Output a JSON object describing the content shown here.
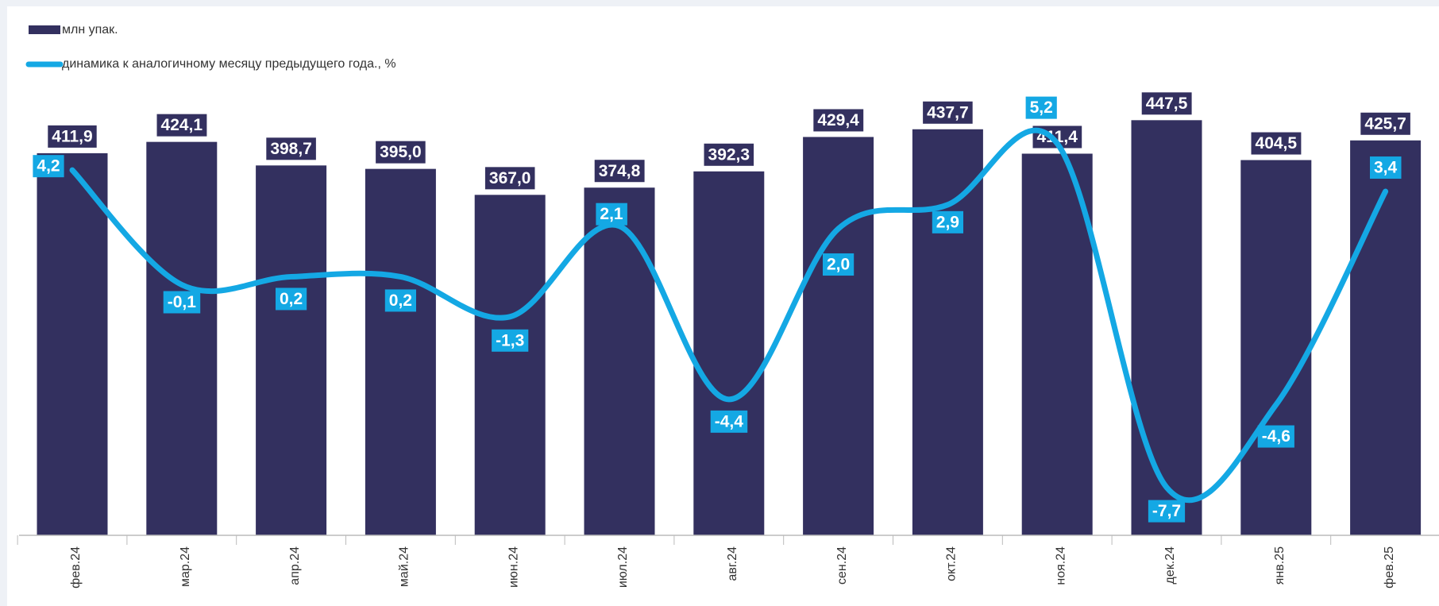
{
  "chart_data": {
    "type": "bar_line",
    "categories": [
      "фев.24",
      "мар.24",
      "апр.24",
      "май.24",
      "июн.24",
      "июл.24",
      "авг.24",
      "сен.24",
      "окт.24",
      "ноя.24",
      "дек.24",
      "янв.25",
      "фев.25"
    ],
    "series": [
      {
        "name": "млн упак.",
        "color": "#33305f",
        "type": "bar",
        "values": [
          411.9,
          424.1,
          398.7,
          395.0,
          367.0,
          374.8,
          392.3,
          429.4,
          437.7,
          411.4,
          447.5,
          404.5,
          425.7
        ],
        "value_labels": [
          "411,9",
          "424,1",
          "398,7",
          "395,0",
          "367,0",
          "374,8",
          "392,3",
          "429,4",
          "437,7",
          "411,4",
          "447,5",
          "404,5",
          "425,7"
        ]
      },
      {
        "name": "динамика к аналогичному месяцу предыдущего года., %",
        "color": "#14a8e4",
        "type": "line",
        "axis": "y2",
        "values": [
          4.2,
          -0.1,
          0.2,
          0.2,
          -1.3,
          2.1,
          -4.4,
          2.0,
          2.9,
          5.2,
          -7.7,
          -4.6,
          3.4
        ],
        "value_labels": [
          "4,2",
          "-0,1",
          "0,2",
          "0,2",
          "-1,3",
          "2,1",
          "-4,4",
          "2,0",
          "2,9",
          "5,2",
          "-7,7",
          "-4,6",
          "3,4"
        ]
      }
    ],
    "ylim": [
      0,
      500
    ],
    "y2lim": [
      -9.5,
      7.9
    ]
  }
}
